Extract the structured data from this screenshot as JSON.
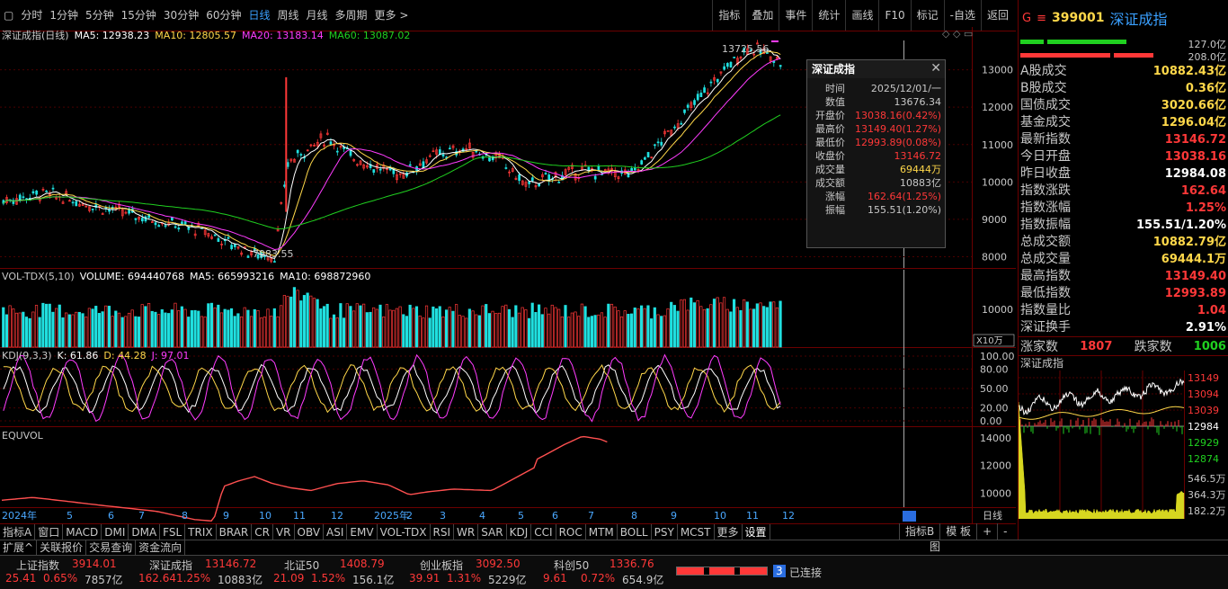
{
  "toolbar": {
    "periods": [
      "分时",
      "1分钟",
      "5分钟",
      "15分钟",
      "30分钟",
      "60分钟",
      "日线",
      "周线",
      "月线",
      "多周期",
      "更多 >"
    ],
    "active_period": "日线",
    "right_buttons": [
      "指标",
      "叠加",
      "事件",
      "统计",
      "画线",
      "F10",
      "标记",
      "-自选",
      "返回"
    ]
  },
  "main_chart": {
    "title": "深证成指(日线)",
    "ma5": "MA5: 12938.23",
    "ma10": "MA10: 12805.57",
    "ma20": "MA20: 13183.14",
    "ma60": "MA60: 13087.02",
    "high_label": "13725.56",
    "low_label": "7983.55",
    "yticks": [
      "13000",
      "12000",
      "11000",
      "10000",
      "9000",
      "8000"
    ]
  },
  "volume_pane": {
    "title": "VOL-TDX(5,10)",
    "volume": "VOLUME: 694440768",
    "ma5": "MA5: 665993216",
    "ma10": "MA10: 698872960",
    "ytick": "10000",
    "unit": "X10万"
  },
  "kdj_pane": {
    "title": "KDJ(9,3,3)",
    "k": "K: 61.86",
    "d": "D: 44.28",
    "j": "J: 97.01",
    "yticks": [
      "100.00",
      "80.00",
      "50.00",
      "20.00",
      "0.00"
    ]
  },
  "equvol_pane": {
    "title": "EQUVOL",
    "yticks": [
      "14000",
      "12000",
      "10000"
    ]
  },
  "xaxis": {
    "labels": [
      "2024年",
      "5",
      "6",
      "7",
      "8",
      "9",
      "10",
      "11",
      "12",
      "2025年",
      "2",
      "3",
      "4",
      "5",
      "6",
      "7",
      "8",
      "9",
      "10",
      "11",
      "12"
    ],
    "period_label": "日线"
  },
  "popup": {
    "title": "深证成指",
    "rows": [
      {
        "k": "时间",
        "v": "2025/12/01/一",
        "c": "#c8c8c8"
      },
      {
        "k": "数值",
        "v": "13676.34",
        "c": "#c8c8c8"
      },
      {
        "k": "开盘价",
        "v": "13038.16(0.42%)",
        "c": "#ff3838"
      },
      {
        "k": "最高价",
        "v": "13149.40(1.27%)",
        "c": "#ff3838"
      },
      {
        "k": "最低价",
        "v": "12993.89(0.08%)",
        "c": "#ff3838"
      },
      {
        "k": "收盘价",
        "v": "13146.72",
        "c": "#ff3838"
      },
      {
        "k": "成交量",
        "v": "69444万",
        "c": "#ffd84a"
      },
      {
        "k": "成交额",
        "v": "10883亿",
        "c": "#c8c8c8"
      },
      {
        "k": "涨幅",
        "v": "162.64(1.25%)",
        "c": "#ff3838"
      },
      {
        "k": "振幅",
        "v": "155.51(1.20%)",
        "c": "#c8c8c8"
      }
    ]
  },
  "right_panel": {
    "badge": "G",
    "menu": "≡",
    "code": "399001",
    "name": "深证成指",
    "bar_top_value": "127.0亿",
    "bar_bottom_value": "208.0亿",
    "stats": [
      {
        "k": "A股成交",
        "v": "10882.43亿",
        "c": "#ffd84a"
      },
      {
        "k": "B股成交",
        "v": "0.36亿",
        "c": "#ffd84a"
      },
      {
        "k": "国债成交",
        "v": "3020.66亿",
        "c": "#ffd84a"
      },
      {
        "k": "基金成交",
        "v": "1296.04亿",
        "c": "#ffd84a"
      },
      {
        "k": "最新指数",
        "v": "13146.72",
        "c": "#ff3838"
      },
      {
        "k": "今日开盘",
        "v": "13038.16",
        "c": "#ff3838"
      },
      {
        "k": "昨日收盘",
        "v": "12984.08",
        "c": "#ffffff"
      },
      {
        "k": "指数涨跌",
        "v": "162.64",
        "c": "#ff3838"
      },
      {
        "k": "指数涨幅",
        "v": "1.25%",
        "c": "#ff3838"
      },
      {
        "k": "指数振幅",
        "v": "155.51/1.20%",
        "c": "#ffffff"
      },
      {
        "k": "总成交额",
        "v": "10882.79亿",
        "c": "#ffd84a"
      },
      {
        "k": "总成交量",
        "v": "69444.1万",
        "c": "#ffd84a"
      },
      {
        "k": "最高指数",
        "v": "13149.40",
        "c": "#ff3838"
      },
      {
        "k": "最低指数",
        "v": "12993.89",
        "c": "#ff3838"
      },
      {
        "k": "指数量比",
        "v": "1.04",
        "c": "#ff3838"
      },
      {
        "k": "深证换手",
        "v": "2.91%",
        "c": "#ffffff"
      }
    ],
    "up_label": "涨家数",
    "up_value": "1807",
    "down_label": "跌家数",
    "down_value": "1006",
    "mini_title": "深证成指",
    "mini_yticks": [
      "13149",
      "13094",
      "13039",
      "12984",
      "12929",
      "12874"
    ],
    "mini_vol_ticks": [
      "546.5万",
      "364.3万",
      "182.2万"
    ]
  },
  "bottom_tabs": [
    "指标A",
    "窗口",
    "MACD",
    "DMI",
    "DMA",
    "FSL",
    "TRIX",
    "BRAR",
    "CR",
    "VR",
    "OBV",
    "ASI",
    "EMV",
    "VOL-TDX",
    "RSI",
    "WR",
    "SAR",
    "KDJ",
    "CCI",
    "ROC",
    "MTM",
    "BOLL",
    "PSY",
    "MCST",
    "更多",
    "设置"
  ],
  "bottom_right_tabs": [
    "指标B",
    "模 板",
    "+",
    "-"
  ],
  "sub_tabs": [
    "扩展^",
    "关联报价",
    "交易查询",
    "资金流向"
  ],
  "sub_right": "图",
  "status": [
    {
      "name": "上证指数",
      "val": "3914.01",
      "chg": "25.41",
      "pct": "0.65%",
      "amt": "7857亿"
    },
    {
      "name": "深证成指",
      "val": "13146.72",
      "chg": "162.64",
      "pct": "1.25%",
      "amt": "10883亿"
    },
    {
      "name": "北证50",
      "val": "1408.79",
      "chg": "21.09",
      "pct": "1.52%",
      "amt": "156.1亿"
    },
    {
      "name": "创业板指",
      "val": "3092.50",
      "chg": "39.91",
      "pct": "1.31%",
      "amt": "5229亿"
    },
    {
      "name": "科创50",
      "val": "1336.76",
      "chg": "9.61",
      "pct": "0.72%",
      "amt": "654.9亿"
    }
  ],
  "connection": {
    "count": "3",
    "label": "已连接"
  },
  "colors": {
    "up": "#ff3838",
    "down": "#20d020",
    "ma5": "#ffffff",
    "ma10": "#ffd84a",
    "ma20": "#ff3cff",
    "ma60": "#20d020",
    "grid": "#6b0000",
    "equvol": "#ff5050"
  }
}
